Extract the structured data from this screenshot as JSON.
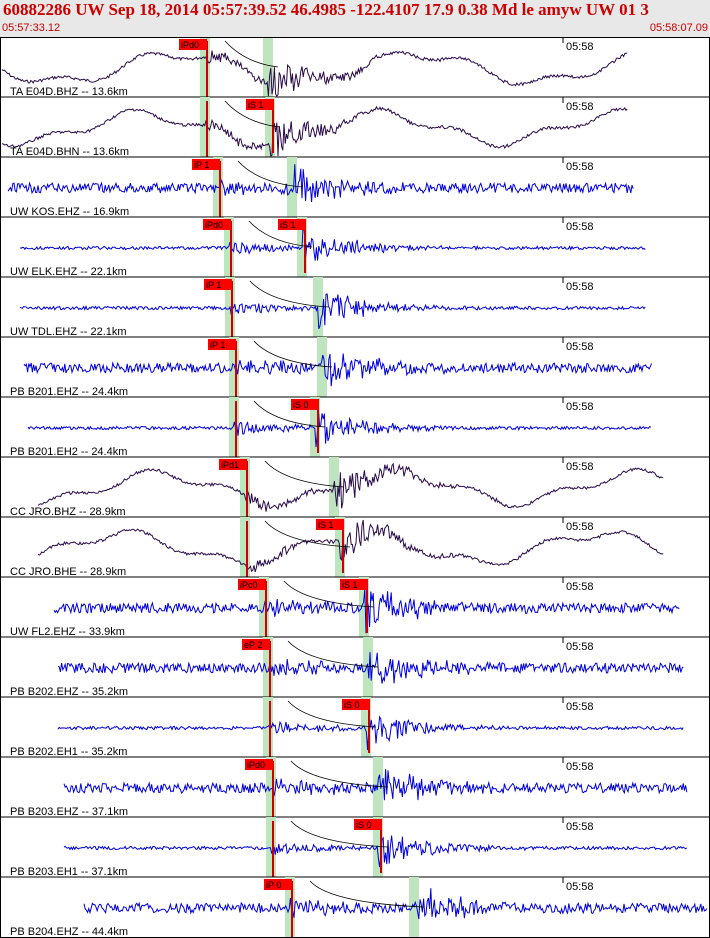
{
  "header": {
    "title": "60882286 UW Sep 18, 2014 05:57:39.52   46.4985 -122.4107 17.9 0.38 Md le amyw UW 01   3",
    "start_time": "05:57:33.12",
    "end_time": "05:58:07.09"
  },
  "time_tick_label": "05:58",
  "colors": {
    "trace_blue": "#0000dd",
    "trace_purple": "#2a0a4a",
    "pick_label_bg": "#ff0000",
    "pick_line": "#cc0000",
    "phase_band": "#bfe5bf"
  },
  "channels": [
    {
      "label": "TA E04D.BHZ -- 13.6km",
      "trace_color": "purple",
      "style": "longwave",
      "p_pick": "iPd0",
      "s_pick": null
    },
    {
      "label": "TA E04D.BHN -- 13.6km",
      "trace_color": "purple",
      "style": "longwave",
      "p_pick": null,
      "s_pick": "iS 1"
    },
    {
      "label": "UW KOS.EHZ -- 16.9km",
      "trace_color": "blue",
      "style": "noisy",
      "p_pick": "iP 1",
      "s_pick": null
    },
    {
      "label": "UW ELK.EHZ -- 22.1km",
      "trace_color": "blue",
      "style": "quiet",
      "p_pick": "iPd0",
      "s_pick": "iS 1"
    },
    {
      "label": "UW TDL.EHZ -- 22.1km",
      "trace_color": "blue",
      "style": "quiet",
      "p_pick": "iP 1",
      "s_pick": null
    },
    {
      "label": "PB B201.EHZ -- 24.4km",
      "trace_color": "blue",
      "style": "noisy",
      "p_pick": "iP 1",
      "s_pick": null
    },
    {
      "label": "PB B201.EH2 -- 24.4km",
      "trace_color": "blue",
      "style": "quiet",
      "p_pick": null,
      "s_pick": "iS 0"
    },
    {
      "label": "CC JRO.BHZ -- 28.9km",
      "trace_color": "purple",
      "style": "longwave",
      "p_pick": "iPd1",
      "s_pick": null
    },
    {
      "label": "CC JRO.BHE -- 28.9km",
      "trace_color": "purple",
      "style": "longwave",
      "p_pick": null,
      "s_pick": "iS 1"
    },
    {
      "label": "UW FL2.EHZ -- 33.9km",
      "trace_color": "blue",
      "style": "noisy",
      "p_pick": "iPc0",
      "s_pick": "iS 1"
    },
    {
      "label": "PB B202.EHZ -- 35.2km",
      "trace_color": "blue",
      "style": "noisy",
      "p_pick": "eP 2",
      "s_pick": null
    },
    {
      "label": "PB B202.EH1 -- 35.2km",
      "trace_color": "blue",
      "style": "quiet",
      "p_pick": null,
      "s_pick": "iS 0"
    },
    {
      "label": "PB B203.EHZ -- 37.1km",
      "trace_color": "blue",
      "style": "noisy",
      "p_pick": "iPd0",
      "s_pick": null
    },
    {
      "label": "PB B203.EH1 -- 37.1km",
      "trace_color": "blue",
      "style": "quiet",
      "p_pick": null,
      "s_pick": "iS 0"
    },
    {
      "label": "PB B204.EHZ -- 44.4km",
      "trace_color": "blue",
      "style": "noisy",
      "p_pick": "iP 0",
      "s_pick": null
    }
  ]
}
